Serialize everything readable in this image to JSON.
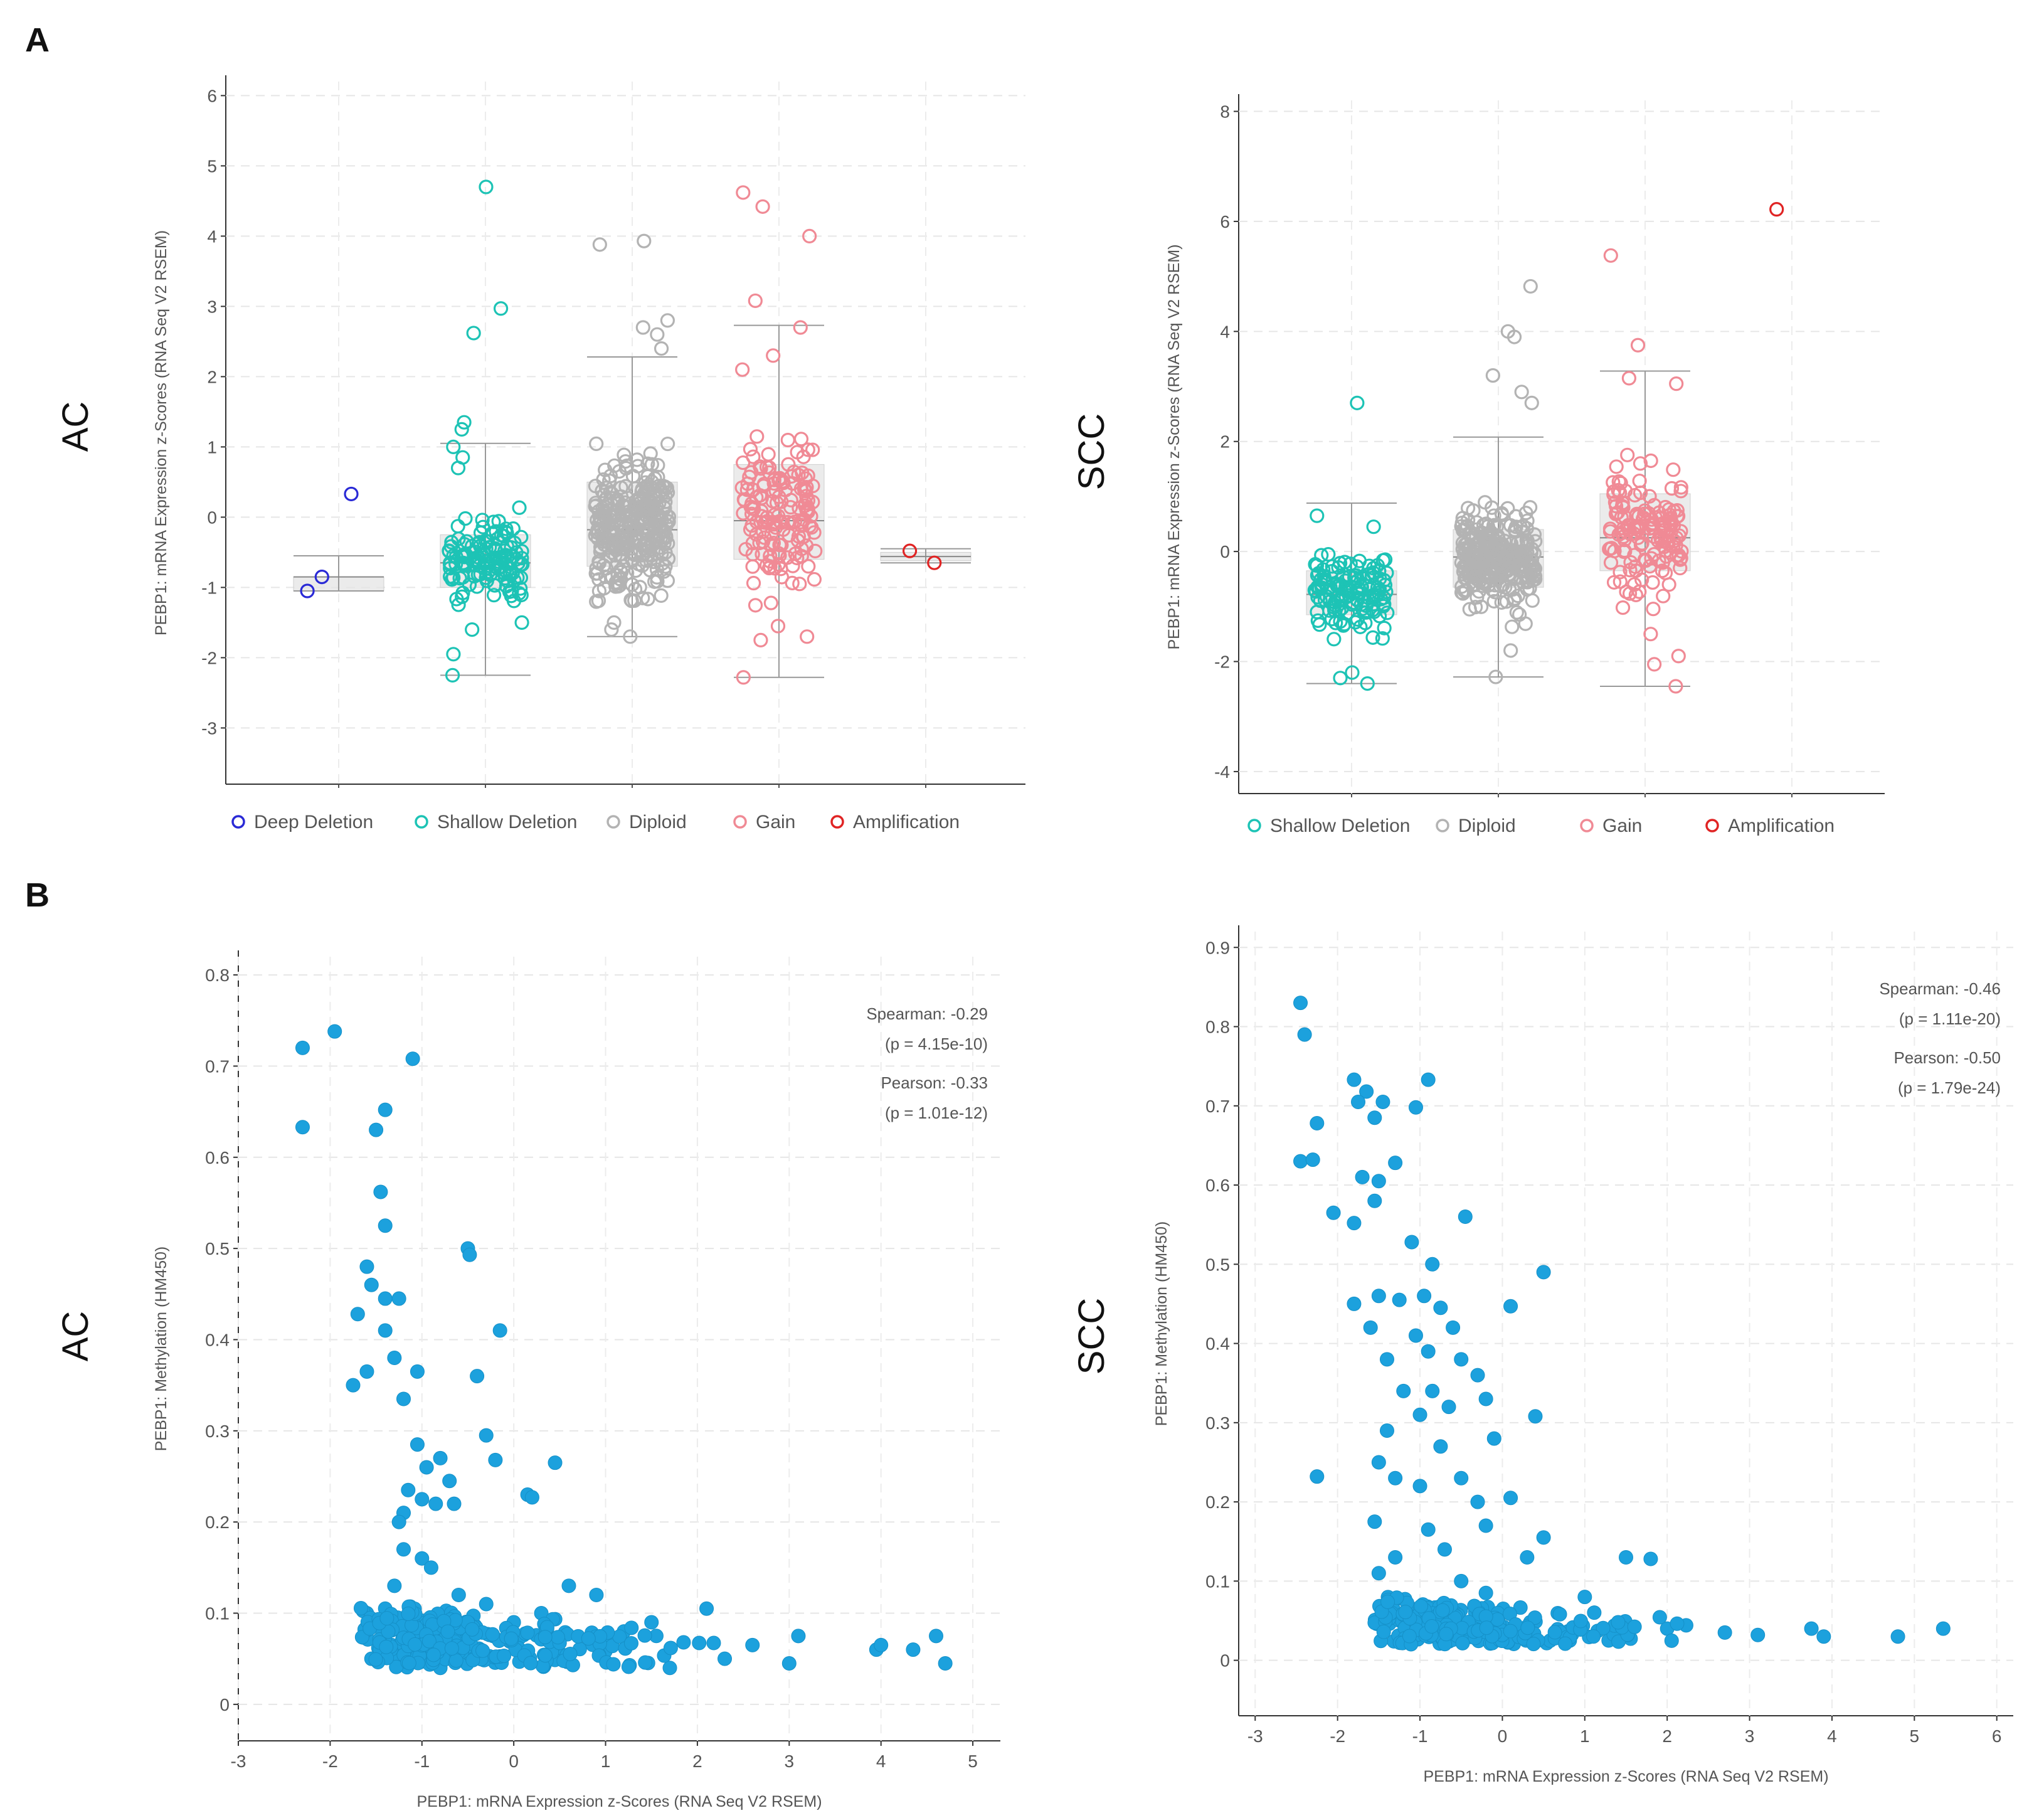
{
  "panels": {
    "A": "A",
    "B": "B"
  },
  "chart_data": [
    {
      "id": "a-ac",
      "type": "scatter",
      "side_label": "AC",
      "ylabel": "PEBP1: mRNA Expression z-Scores (RNA Seq V2 RSEM)",
      "xlabel": "",
      "ylim": [
        -3.8,
        6.2
      ],
      "yticks": [
        -3,
        -2,
        -1,
        0,
        1,
        2,
        3,
        4,
        5,
        6
      ],
      "grid": true,
      "legend_position": "bottom",
      "categories": [
        {
          "name": "Deep Deletion",
          "color": "#2a2ad6",
          "whisker": [
            -1.05,
            -0.55
          ],
          "box": [
            -1.05,
            -0.85
          ],
          "median": -0.85,
          "points": [
            -0.85,
            -1.05
          ]
        },
        {
          "name": "Shallow Deletion",
          "color": "#1dc3b5",
          "whisker": [
            -2.25,
            1.05
          ],
          "box": [
            -1.0,
            -0.25
          ],
          "median": -0.65,
          "points": [
            4.7,
            2.97,
            2.62,
            1.35,
            1.25,
            1.0,
            0.85,
            0.7,
            -2.25,
            -1.95,
            -1.6,
            -1.5
          ]
        },
        {
          "name": "Diploid",
          "color": "#b3b3b3",
          "whisker": [
            -1.7,
            2.28
          ],
          "box": [
            -0.7,
            0.5
          ],
          "median": -0.18,
          "points": [
            3.93,
            3.88,
            2.8,
            2.7,
            2.6,
            2.4,
            -1.7,
            -1.6,
            -1.5
          ]
        },
        {
          "name": "Gain",
          "color": "#f08a95",
          "whisker": [
            -2.28,
            2.73
          ],
          "box": [
            -0.6,
            0.75
          ],
          "median": -0.05,
          "points": [
            4.62,
            4.42,
            4.0,
            3.08,
            2.7,
            2.3,
            2.1,
            -2.28,
            -1.75,
            -1.7,
            -1.55
          ]
        },
        {
          "name": "Amplification",
          "color": "#e02424",
          "whisker": [
            -0.65,
            -0.45
          ],
          "box": [
            -0.62,
            -0.5
          ],
          "median": -0.56,
          "points": [
            -0.48,
            -0.65
          ]
        }
      ],
      "outliers": [
        {
          "category": "Deep Deletion",
          "value": 0.33
        }
      ]
    },
    {
      "id": "a-scc",
      "type": "scatter",
      "side_label": "SCC",
      "ylabel": "PEBP1: mRNA Expression z-Scores (RNA Seq V2 RSEM)",
      "xlabel": "",
      "ylim": [
        -4.4,
        8.2
      ],
      "yticks": [
        -4,
        -2,
        0,
        2,
        4,
        6,
        8
      ],
      "grid": true,
      "legend_position": "bottom",
      "categories": [
        {
          "name": "Shallow Deletion",
          "color": "#1dc3b5",
          "whisker": [
            -2.4,
            0.88
          ],
          "box": [
            -1.15,
            -0.35
          ],
          "median": -0.78,
          "points": [
            2.7,
            0.65,
            0.45,
            -2.4,
            -2.3,
            -2.2
          ]
        },
        {
          "name": "Diploid",
          "color": "#b3b3b3",
          "whisker": [
            -2.28,
            2.08
          ],
          "box": [
            -0.65,
            0.4
          ],
          "median": -0.1,
          "points": [
            4.82,
            4.0,
            3.9,
            3.2,
            2.9,
            2.7,
            -2.28,
            -1.8
          ]
        },
        {
          "name": "Gain",
          "color": "#f08a95",
          "whisker": [
            -2.45,
            3.28
          ],
          "box": [
            -0.35,
            1.05
          ],
          "median": 0.25,
          "points": [
            5.38,
            3.75,
            3.15,
            3.05,
            -2.45,
            -2.05,
            -1.9,
            -1.5
          ]
        },
        {
          "name": "Amplification",
          "color": "#e02424",
          "whisker": null,
          "box": null,
          "median": null,
          "points": [
            6.22
          ]
        }
      ]
    },
    {
      "id": "b-ac",
      "type": "scatter",
      "side_label": "AC",
      "xlabel": "PEBP1: mRNA Expression z-Scores (RNA Seq V2 RSEM)",
      "ylabel": "PEBP1: Methylation (HM450)",
      "xlim": [
        -3,
        5.3
      ],
      "ylim": [
        -0.04,
        0.82
      ],
      "xticks": [
        -3,
        -2,
        -1,
        0,
        1,
        2,
        3,
        4,
        5
      ],
      "yticks": [
        0,
        0.1,
        0.2,
        0.3,
        0.4,
        0.5,
        0.6,
        0.7,
        0.8
      ],
      "grid": true,
      "color": "#1ca1dd",
      "annotations": [
        "Spearman: -0.29",
        "(p = 4.15e-10)",
        "Pearson: -0.33",
        "(p = 1.01e-12)"
      ],
      "points": [
        [
          -2.3,
          0.72
        ],
        [
          -2.3,
          0.633
        ],
        [
          -1.95,
          0.738
        ],
        [
          -1.5,
          0.63
        ],
        [
          -1.4,
          0.652
        ],
        [
          -1.1,
          0.708
        ],
        [
          -1.45,
          0.562
        ],
        [
          -1.4,
          0.525
        ],
        [
          -0.5,
          0.5
        ],
        [
          -0.48,
          0.493
        ],
        [
          -1.6,
          0.48
        ],
        [
          -1.55,
          0.46
        ],
        [
          -1.4,
          0.445
        ],
        [
          -1.25,
          0.445
        ],
        [
          -1.7,
          0.428
        ],
        [
          -1.4,
          0.41
        ],
        [
          -0.15,
          0.41
        ],
        [
          -1.3,
          0.38
        ],
        [
          -1.05,
          0.365
        ],
        [
          -0.4,
          0.36
        ],
        [
          -1.75,
          0.35
        ],
        [
          -1.6,
          0.365
        ],
        [
          -1.2,
          0.335
        ],
        [
          -0.3,
          0.295
        ],
        [
          -1.05,
          0.285
        ],
        [
          -0.8,
          0.27
        ],
        [
          -0.95,
          0.26
        ],
        [
          -0.2,
          0.268
        ],
        [
          0.45,
          0.265
        ],
        [
          -0.7,
          0.245
        ],
        [
          -1.15,
          0.235
        ],
        [
          -1.0,
          0.225
        ],
        [
          -0.85,
          0.22
        ],
        [
          -0.65,
          0.22
        ],
        [
          0.15,
          0.23
        ],
        [
          0.2,
          0.227
        ],
        [
          -1.2,
          0.21
        ],
        [
          -1.25,
          0.2
        ],
        [
          -1.4,
          0.105
        ],
        [
          -1.6,
          0.1
        ],
        [
          -1.55,
          0.05
        ],
        [
          -1.3,
          0.13
        ],
        [
          -1.2,
          0.17
        ],
        [
          -1.0,
          0.16
        ],
        [
          -0.9,
          0.15
        ],
        [
          -0.6,
          0.12
        ],
        [
          -0.3,
          0.11
        ],
        [
          0.0,
          0.09
        ],
        [
          0.3,
          0.1
        ],
        [
          0.6,
          0.13
        ],
        [
          0.9,
          0.12
        ],
        [
          1.2,
          0.08
        ],
        [
          1.5,
          0.09
        ],
        [
          2.1,
          0.105
        ],
        [
          2.6,
          0.065
        ],
        [
          3.0,
          0.045
        ],
        [
          3.1,
          0.075
        ],
        [
          3.95,
          0.06
        ],
        [
          4.0,
          0.065
        ],
        [
          4.35,
          0.06
        ],
        [
          4.6,
          0.075
        ],
        [
          4.7,
          0.045
        ],
        [
          -0.8,
          0.04
        ],
        [
          0.5,
          0.05
        ],
        [
          1.7,
          0.04
        ]
      ],
      "cluster": {
        "x": [
          -1.6,
          2.4
        ],
        "y": [
          0.04,
          0.11
        ],
        "count": 260
      }
    },
    {
      "id": "b-scc",
      "type": "scatter",
      "side_label": "SCC",
      "xlabel": "PEBP1: mRNA Expression z-Scores (RNA Seq V2 RSEM)",
      "ylabel": "PEBP1: Methylation (HM450)",
      "xlim": [
        -3.2,
        6.2
      ],
      "ylim": [
        -0.07,
        0.92
      ],
      "xticks": [
        -3,
        -2,
        -1,
        0,
        1,
        2,
        3,
        4,
        5,
        6
      ],
      "yticks": [
        0,
        0.1,
        0.2,
        0.3,
        0.4,
        0.5,
        0.6,
        0.7,
        0.8,
        0.9
      ],
      "grid": true,
      "color": "#1ca1dd",
      "annotations": [
        "Spearman: -0.46",
        "(p = 1.11e-20)",
        "Pearson: -0.50",
        "(p = 1.79e-24)"
      ],
      "points": [
        [
          -2.45,
          0.83
        ],
        [
          -2.4,
          0.79
        ],
        [
          -1.8,
          0.733
        ],
        [
          -1.65,
          0.718
        ],
        [
          -0.9,
          0.733
        ],
        [
          -1.75,
          0.705
        ],
        [
          -1.45,
          0.705
        ],
        [
          -1.05,
          0.698
        ],
        [
          -2.25,
          0.678
        ],
        [
          -1.55,
          0.685
        ],
        [
          -2.45,
          0.63
        ],
        [
          -2.3,
          0.632
        ],
        [
          -1.3,
          0.628
        ],
        [
          -1.7,
          0.61
        ],
        [
          -1.5,
          0.605
        ],
        [
          -1.55,
          0.58
        ],
        [
          -2.05,
          0.565
        ],
        [
          -1.8,
          0.552
        ],
        [
          -0.45,
          0.56
        ],
        [
          -0.85,
          0.5
        ],
        [
          -1.1,
          0.528
        ],
        [
          0.5,
          0.49
        ],
        [
          -1.5,
          0.46
        ],
        [
          -1.25,
          0.455
        ],
        [
          -0.95,
          0.46
        ],
        [
          -1.8,
          0.45
        ],
        [
          -0.75,
          0.445
        ],
        [
          0.1,
          0.447
        ],
        [
          -1.6,
          0.42
        ],
        [
          -1.05,
          0.41
        ],
        [
          -0.6,
          0.42
        ],
        [
          -0.9,
          0.39
        ],
        [
          -1.4,
          0.38
        ],
        [
          -0.5,
          0.38
        ],
        [
          -0.3,
          0.36
        ],
        [
          -0.85,
          0.34
        ],
        [
          -1.2,
          0.34
        ],
        [
          -0.2,
          0.33
        ],
        [
          -1.0,
          0.31
        ],
        [
          -0.65,
          0.32
        ],
        [
          0.4,
          0.308
        ],
        [
          -1.4,
          0.29
        ],
        [
          -0.1,
          0.28
        ],
        [
          -1.5,
          0.25
        ],
        [
          -0.75,
          0.27
        ],
        [
          -1.3,
          0.23
        ],
        [
          -0.5,
          0.23
        ],
        [
          -2.25,
          0.232
        ],
        [
          -1.0,
          0.22
        ],
        [
          -0.3,
          0.2
        ],
        [
          0.1,
          0.205
        ],
        [
          -1.55,
          0.175
        ],
        [
          -0.9,
          0.165
        ],
        [
          -0.2,
          0.17
        ],
        [
          -1.3,
          0.13
        ],
        [
          -0.7,
          0.14
        ],
        [
          0.3,
          0.13
        ],
        [
          -1.5,
          0.11
        ],
        [
          -0.5,
          0.1
        ],
        [
          0.5,
          0.155
        ],
        [
          1.5,
          0.13
        ],
        [
          1.8,
          0.128
        ],
        [
          1.0,
          0.08
        ],
        [
          2.0,
          0.04
        ],
        [
          2.7,
          0.035
        ],
        [
          3.1,
          0.032
        ],
        [
          3.75,
          0.04
        ],
        [
          3.9,
          0.03
        ],
        [
          4.8,
          0.03
        ],
        [
          5.35,
          0.04
        ],
        [
          -1.4,
          0.07
        ],
        [
          -0.2,
          0.085
        ]
      ],
      "cluster": {
        "x": [
          -1.4,
          2.3
        ],
        "y": [
          0.02,
          0.08
        ],
        "count": 240
      }
    }
  ]
}
